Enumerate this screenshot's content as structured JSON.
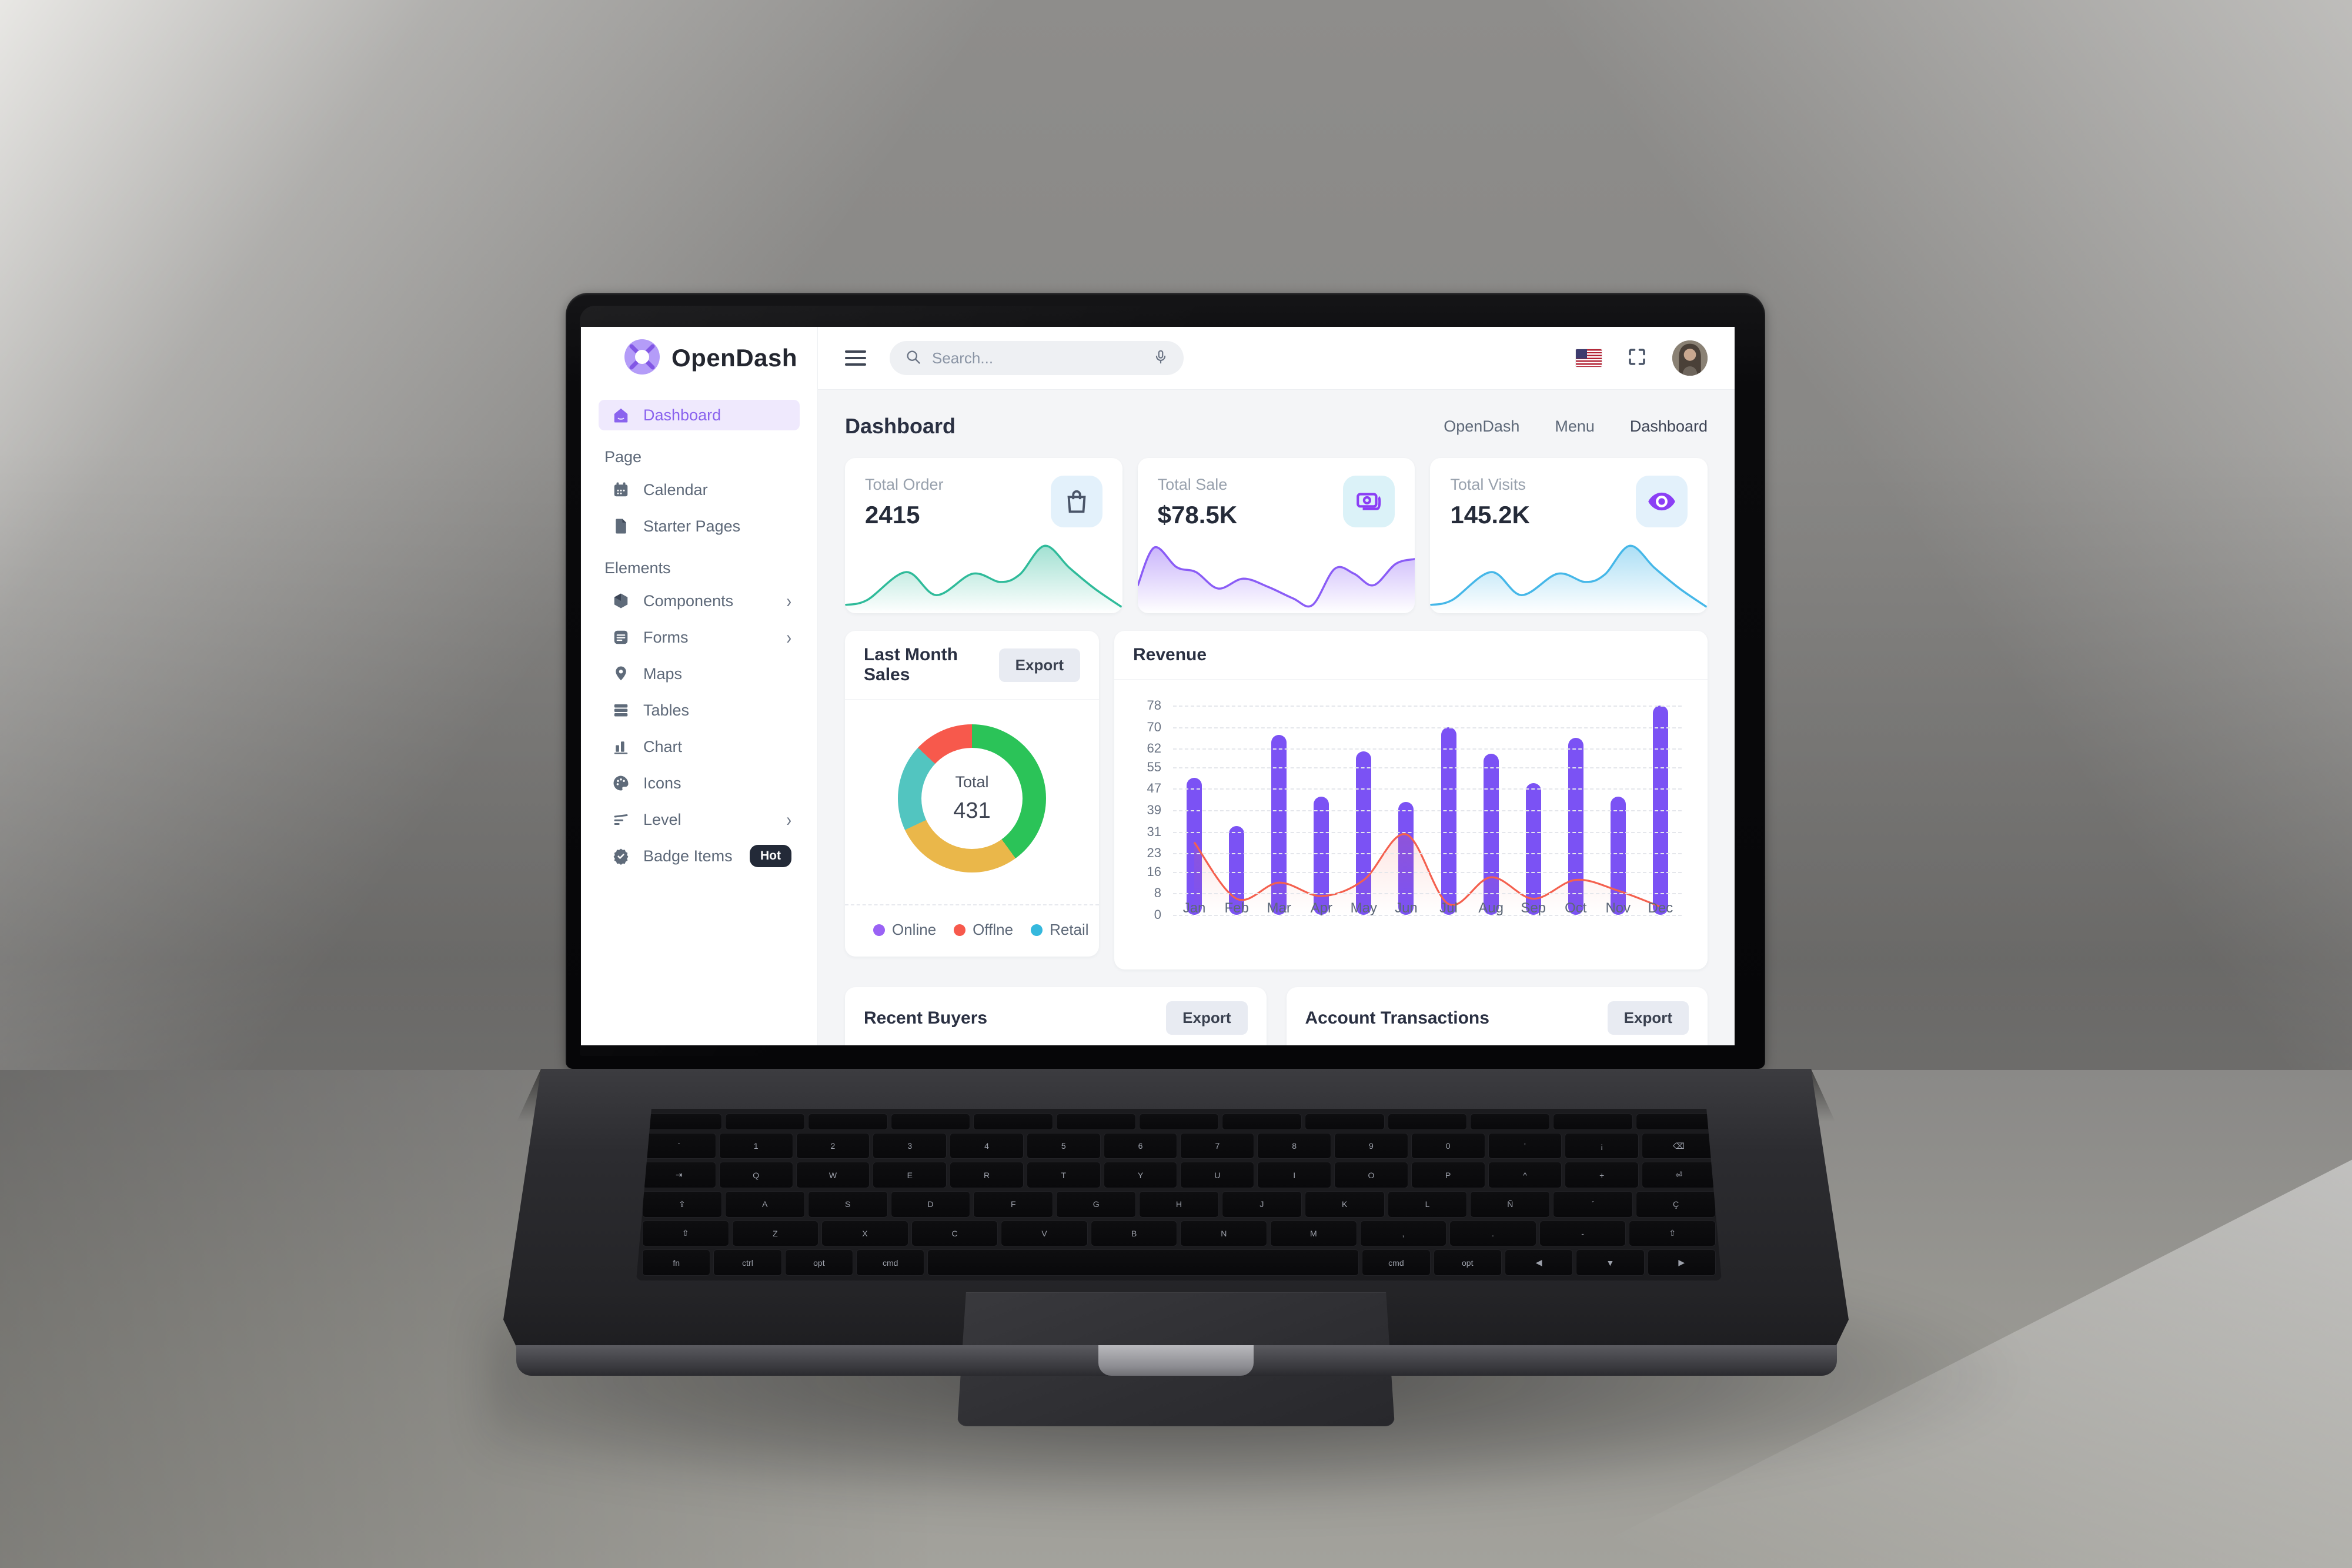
{
  "scene": {
    "keyboard_rows": [
      "esc f1 f2 f3 f4 f5 f6 f7 f8 f9 f10 f11 f12",
      "` 1 2 3 4 5 6 7 8 9 0 ' ¡ ⌫",
      "⇥ Q W E R T Y U I O P ^ + ⏎",
      "⇪ A S D F G H J K L Ñ ´ Ç",
      "⇧ Z X C V B N M , . - ⇧",
      "fn ctrl opt cmd space cmd opt ◀ ▼ ▶"
    ]
  },
  "app": {
    "brand": "OpenDash",
    "sidebar": {
      "items": [
        {
          "label": "Dashboard"
        },
        {
          "label": "Page"
        },
        {
          "label": "Calendar"
        },
        {
          "label": "Starter Pages"
        },
        {
          "label": "Elements"
        },
        {
          "label": "Components"
        },
        {
          "label": "Forms"
        },
        {
          "label": "Maps"
        },
        {
          "label": "Tables"
        },
        {
          "label": "Chart"
        },
        {
          "label": "Icons"
        },
        {
          "label": "Level"
        },
        {
          "label": "Badge Items",
          "badge": "Hot"
        }
      ]
    },
    "topbar": {
      "search_placeholder": "Search..."
    },
    "main": {
      "page_title": "Dashboard",
      "breadcrumb": [
        "OpenDash",
        "Menu",
        "Dashboard"
      ],
      "stats": [
        {
          "label": "Total Order",
          "value": "2415"
        },
        {
          "label": "Total Sale",
          "value": "$78.5K"
        },
        {
          "label": "Total Visits",
          "value": "145.2K"
        }
      ],
      "sales_card": {
        "export_label": "Export"
      },
      "buyers_card": {
        "title": "Recent Buyers",
        "export_label": "Export"
      },
      "transactions_card": {
        "title": "Account Transactions",
        "export_label": "Export"
      }
    }
  },
  "colors": {
    "accent_purple": "#8a63ee",
    "bar_purple": "#7b52f4",
    "line_red": "#f4604e",
    "spark_teal": "#2fbb9a",
    "spark_purple": "#8a5cf6",
    "spark_blue": "#45b7e8"
  },
  "chart_data": [
    {
      "id": "total-order-sparkline",
      "type": "area",
      "color": "#2fbb9a",
      "points": [
        [
          0,
          10
        ],
        [
          8,
          16
        ],
        [
          22,
          50
        ],
        [
          33,
          22
        ],
        [
          46,
          48
        ],
        [
          56,
          38
        ],
        [
          63,
          47
        ],
        [
          72,
          82
        ],
        [
          81,
          55
        ],
        [
          90,
          30
        ],
        [
          100,
          7
        ]
      ]
    },
    {
      "id": "total-sale-sparkline",
      "type": "area",
      "color": "#8a5cf6",
      "points": [
        [
          0,
          34
        ],
        [
          6,
          80
        ],
        [
          14,
          56
        ],
        [
          21,
          50
        ],
        [
          29,
          30
        ],
        [
          38,
          42
        ],
        [
          47,
          32
        ],
        [
          56,
          18
        ],
        [
          63,
          10
        ],
        [
          71,
          54
        ],
        [
          78,
          48
        ],
        [
          85,
          34
        ],
        [
          93,
          60
        ],
        [
          100,
          66
        ]
      ]
    },
    {
      "id": "total-visits-sparkline",
      "type": "area",
      "color": "#45b7e8",
      "points": [
        [
          0,
          10
        ],
        [
          8,
          16
        ],
        [
          22,
          50
        ],
        [
          33,
          22
        ],
        [
          46,
          48
        ],
        [
          56,
          38
        ],
        [
          63,
          47
        ],
        [
          72,
          82
        ],
        [
          81,
          55
        ],
        [
          90,
          30
        ],
        [
          100,
          7
        ]
      ]
    },
    {
      "id": "last-month-sales-donut",
      "type": "pie",
      "title": "Last Month Sales",
      "center_label": "Total",
      "center_value": "431",
      "segments": [
        {
          "pct": 40,
          "color": "#2bc358"
        },
        {
          "pct": 28,
          "color": "#eab74a"
        },
        {
          "pct": 19,
          "color": "#52c5c0"
        },
        {
          "pct": 13,
          "color": "#f7594c"
        }
      ],
      "legend": [
        {
          "label": "Online",
          "color": "#9a62f5"
        },
        {
          "label": "Offlne",
          "color": "#f7594c"
        },
        {
          "label": "Retail",
          "color": "#35b8dd"
        }
      ]
    },
    {
      "id": "revenue",
      "type": "bar",
      "title": "Revenue",
      "categories": [
        "Jan",
        "Feb",
        "Mar",
        "Apr",
        "May",
        "Jun",
        "Jul",
        "Aug",
        "Sep",
        "Oct",
        "Nov",
        "Dec"
      ],
      "yticks": [
        0,
        8,
        16,
        23,
        31,
        39,
        47,
        55,
        62,
        70,
        78
      ],
      "ylim": [
        0,
        78
      ],
      "grid": "dashed",
      "legend_position": "none",
      "series": [
        {
          "name": "Revenue",
          "type": "bar",
          "color": "#7b52f4",
          "values": [
            51,
            33,
            67,
            44,
            61,
            42,
            70,
            60,
            49,
            66,
            44,
            78
          ]
        },
        {
          "name": "Trend",
          "type": "line",
          "color": "#f4604e",
          "values": [
            27,
            6,
            12,
            7,
            13,
            30,
            4,
            14,
            6,
            13,
            9,
            3
          ]
        }
      ]
    }
  ]
}
